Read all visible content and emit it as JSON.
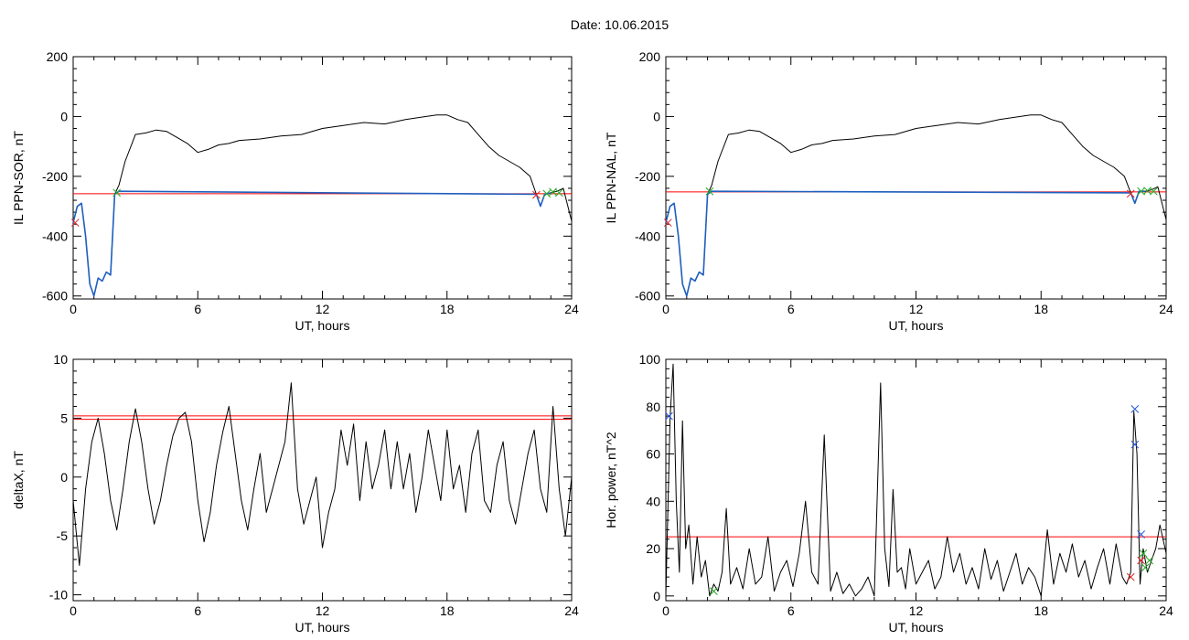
{
  "title": "Date:  10.06.2015",
  "colors": {
    "data": "#000000",
    "threshold": "#ff0000",
    "fit": "#1f5fbf",
    "marker_red": "#dd2222",
    "marker_green": "#22aa22",
    "marker_blue": "#2255dd"
  },
  "chart_data": [
    {
      "id": "il-ppn-sor",
      "type": "line",
      "title": "",
      "xlabel": "UT, hours",
      "ylabel": "IL PPN-SOR, nT",
      "xlim": [
        0,
        24
      ],
      "ylim": [
        -610,
        200
      ],
      "xticks": [
        0,
        6,
        12,
        18,
        24
      ],
      "yticks": [
        -600,
        -400,
        -200,
        0,
        200
      ],
      "thresholds": [
        -258
      ],
      "series": [
        {
          "role": "data",
          "x": [
            0,
            0.2,
            0.4,
            0.6,
            0.8,
            1.0,
            1.2,
            1.4,
            1.6,
            1.8,
            2.0,
            2.2,
            2.5,
            3.0,
            3.5,
            4.0,
            4.5,
            5.0,
            5.5,
            6.0,
            6.5,
            7.0,
            7.5,
            8.0,
            9.0,
            10.0,
            11.0,
            12.0,
            13.0,
            14.0,
            15.0,
            16.0,
            17.0,
            17.5,
            18.0,
            18.5,
            19.0,
            19.5,
            20.0,
            20.5,
            21.0,
            21.5,
            22.0,
            22.3,
            22.5,
            22.7,
            23.0,
            23.3,
            23.6,
            24.0
          ],
          "y": [
            -355,
            -300,
            -290,
            -400,
            -560,
            -600,
            -540,
            -550,
            -520,
            -530,
            -260,
            -230,
            -150,
            -60,
            -55,
            -45,
            -50,
            -70,
            -90,
            -120,
            -110,
            -95,
            -90,
            -80,
            -75,
            -65,
            -60,
            -40,
            -30,
            -20,
            -25,
            -10,
            0,
            5,
            5,
            -10,
            -20,
            -60,
            -100,
            -130,
            -150,
            -170,
            -200,
            -260,
            -300,
            -260,
            -255,
            -250,
            -240,
            -350
          ]
        },
        {
          "role": "fit",
          "x": [
            0,
            0.2,
            0.4,
            0.6,
            0.8,
            1.0,
            1.2,
            1.4,
            1.6,
            1.8,
            2.0,
            2.2,
            22.3,
            22.5,
            22.7,
            23.0
          ],
          "y": [
            -355,
            -300,
            -290,
            -400,
            -560,
            -600,
            -540,
            -550,
            -520,
            -530,
            -260,
            -250,
            -260,
            -300,
            -260,
            -255
          ]
        }
      ],
      "markers": [
        {
          "x": 0.1,
          "y": -355,
          "color": "red"
        },
        {
          "x": 2.1,
          "y": -255,
          "color": "green"
        },
        {
          "x": 22.3,
          "y": -262,
          "color": "red"
        },
        {
          "x": 22.8,
          "y": -258,
          "color": "green"
        },
        {
          "x": 23.1,
          "y": -252,
          "color": "green"
        },
        {
          "x": 23.4,
          "y": -255,
          "color": "green"
        }
      ]
    },
    {
      "id": "il-ppn-nal",
      "type": "line",
      "title": "",
      "xlabel": "UT, hours",
      "ylabel": "IL PPN-NAL, nT",
      "xlim": [
        0,
        24
      ],
      "ylim": [
        -610,
        200
      ],
      "xticks": [
        0,
        6,
        12,
        18,
        24
      ],
      "yticks": [
        -600,
        -400,
        -200,
        0,
        200
      ],
      "thresholds": [
        -252
      ],
      "series": [
        {
          "role": "data",
          "x": [
            0,
            0.2,
            0.4,
            0.6,
            0.8,
            1.0,
            1.2,
            1.4,
            1.6,
            1.8,
            2.0,
            2.2,
            2.5,
            3.0,
            3.5,
            4.0,
            4.5,
            5.0,
            5.5,
            6.0,
            6.5,
            7.0,
            7.5,
            8.0,
            9.0,
            10.0,
            11.0,
            12.0,
            13.0,
            14.0,
            15.0,
            16.0,
            17.0,
            17.5,
            18.0,
            18.5,
            19.0,
            19.5,
            20.0,
            20.5,
            21.0,
            21.5,
            22.0,
            22.3,
            22.5,
            22.7,
            23.0,
            23.3,
            23.6,
            24.0
          ],
          "y": [
            -355,
            -300,
            -290,
            -400,
            -560,
            -600,
            -540,
            -550,
            -520,
            -530,
            -260,
            -230,
            -150,
            -60,
            -55,
            -45,
            -50,
            -70,
            -90,
            -120,
            -110,
            -95,
            -90,
            -80,
            -75,
            -65,
            -60,
            -40,
            -30,
            -20,
            -25,
            -10,
            0,
            5,
            5,
            -10,
            -20,
            -60,
            -100,
            -130,
            -150,
            -170,
            -200,
            -255,
            -290,
            -250,
            -250,
            -245,
            -235,
            -345
          ]
        },
        {
          "role": "fit",
          "x": [
            0,
            0.2,
            0.4,
            0.6,
            0.8,
            1.0,
            1.2,
            1.4,
            1.6,
            1.8,
            2.0,
            2.2,
            22.3,
            22.5,
            22.7,
            23.0
          ],
          "y": [
            -355,
            -300,
            -290,
            -400,
            -560,
            -600,
            -540,
            -550,
            -520,
            -530,
            -260,
            -250,
            -255,
            -290,
            -250,
            -250
          ]
        }
      ],
      "markers": [
        {
          "x": 0.1,
          "y": -355,
          "color": "red"
        },
        {
          "x": 2.1,
          "y": -250,
          "color": "green"
        },
        {
          "x": 22.3,
          "y": -258,
          "color": "red"
        },
        {
          "x": 22.8,
          "y": -250,
          "color": "green"
        },
        {
          "x": 23.1,
          "y": -248,
          "color": "green"
        },
        {
          "x": 23.4,
          "y": -250,
          "color": "green"
        }
      ]
    },
    {
      "id": "deltax",
      "type": "line",
      "title": "",
      "xlabel": "UT, hours",
      "ylabel": "deltaX, nT",
      "xlim": [
        0,
        24
      ],
      "ylim": [
        -10.5,
        10
      ],
      "xticks": [
        0,
        6,
        12,
        18,
        24
      ],
      "yticks": [
        -10,
        -5,
        0,
        5,
        10
      ],
      "thresholds": [
        5.2,
        4.9
      ],
      "series": [
        {
          "role": "data",
          "x": [
            0,
            0.3,
            0.6,
            0.9,
            1.2,
            1.5,
            1.8,
            2.1,
            2.4,
            2.7,
            3.0,
            3.3,
            3.6,
            3.9,
            4.2,
            4.5,
            4.8,
            5.1,
            5.4,
            5.7,
            6.0,
            6.3,
            6.6,
            6.9,
            7.2,
            7.5,
            7.8,
            8.1,
            8.4,
            8.7,
            9.0,
            9.3,
            9.6,
            9.9,
            10.2,
            10.5,
            10.8,
            11.1,
            11.4,
            11.7,
            12.0,
            12.3,
            12.6,
            12.9,
            13.2,
            13.5,
            13.8,
            14.1,
            14.4,
            14.7,
            15.0,
            15.3,
            15.6,
            15.9,
            16.2,
            16.5,
            16.8,
            17.1,
            17.4,
            17.7,
            18.0,
            18.3,
            18.6,
            18.9,
            19.2,
            19.5,
            19.8,
            20.1,
            20.4,
            20.7,
            21.0,
            21.3,
            21.6,
            21.9,
            22.2,
            22.5,
            22.8,
            23.1,
            23.4,
            23.7,
            24.0
          ],
          "y": [
            -2,
            -7.5,
            -1,
            3,
            5,
            2,
            -2,
            -4.5,
            -1,
            3,
            5.8,
            3,
            -1,
            -4,
            -2,
            1,
            3.5,
            5,
            5.5,
            3,
            -2,
            -5.5,
            -3,
            1,
            3.8,
            6,
            2,
            -2,
            -4.5,
            -1,
            2,
            -3,
            -1,
            1,
            3,
            8,
            -1,
            -4,
            -2,
            0,
            -6,
            -3,
            -1,
            4,
            1,
            4.5,
            -2,
            3,
            -1,
            1,
            4,
            -1,
            3,
            -1,
            2,
            -3,
            0,
            4,
            1,
            -2,
            4,
            -1,
            1,
            -3,
            2,
            4,
            -2,
            -3,
            1,
            3,
            -2,
            -4,
            -1,
            2,
            4,
            -1,
            -3,
            6,
            -1,
            -5,
            0
          ]
        }
      ],
      "markers": []
    },
    {
      "id": "hor-power",
      "type": "line",
      "title": "",
      "xlabel": "UT, hours",
      "ylabel": "Hor. power, nT^2",
      "xlim": [
        0,
        24
      ],
      "ylim": [
        -2,
        100
      ],
      "xticks": [
        0,
        6,
        12,
        18,
        24
      ],
      "yticks": [
        0,
        20,
        40,
        60,
        80,
        100
      ],
      "thresholds": [
        25
      ],
      "series": [
        {
          "role": "data",
          "x": [
            0,
            0.2,
            0.35,
            0.5,
            0.65,
            0.8,
            0.95,
            1.1,
            1.3,
            1.5,
            1.7,
            1.9,
            2.1,
            2.3,
            2.5,
            2.7,
            2.9,
            3.1,
            3.4,
            3.7,
            4.0,
            4.3,
            4.6,
            4.9,
            5.2,
            5.5,
            5.8,
            6.1,
            6.4,
            6.7,
            7.0,
            7.3,
            7.6,
            7.9,
            8.2,
            8.5,
            8.8,
            9.1,
            9.4,
            9.7,
            10.0,
            10.3,
            10.5,
            10.7,
            10.9,
            11.1,
            11.3,
            11.5,
            11.7,
            12.0,
            12.3,
            12.6,
            12.9,
            13.2,
            13.5,
            13.8,
            14.1,
            14.4,
            14.7,
            15.0,
            15.3,
            15.6,
            15.9,
            16.2,
            16.5,
            16.8,
            17.1,
            17.4,
            17.7,
            18.0,
            18.3,
            18.6,
            18.9,
            19.2,
            19.5,
            19.8,
            20.1,
            20.4,
            20.7,
            21.0,
            21.3,
            21.6,
            21.9,
            22.1,
            22.3,
            22.45,
            22.6,
            22.75,
            22.9,
            23.1,
            23.3,
            23.5,
            23.7,
            24.0
          ],
          "y": [
            0,
            75,
            98,
            40,
            10,
            74,
            20,
            30,
            5,
            25,
            8,
            15,
            0,
            5,
            2,
            10,
            37,
            5,
            12,
            3,
            20,
            5,
            8,
            25,
            2,
            10,
            15,
            4,
            18,
            40,
            10,
            5,
            68,
            2,
            10,
            1,
            5,
            0,
            3,
            8,
            0,
            90,
            20,
            4,
            45,
            10,
            12,
            3,
            20,
            5,
            10,
            15,
            3,
            8,
            25,
            10,
            18,
            5,
            12,
            3,
            20,
            7,
            15,
            2,
            10,
            18,
            5,
            12,
            8,
            0,
            28,
            5,
            18,
            10,
            22,
            8,
            15,
            3,
            12,
            20,
            5,
            22,
            8,
            5,
            10,
            78,
            60,
            5,
            20,
            10,
            15,
            20,
            30,
            18
          ]
        }
      ],
      "markers": [
        {
          "x": 0.15,
          "y": 76,
          "color": "blue"
        },
        {
          "x": 2.3,
          "y": 2,
          "color": "green"
        },
        {
          "x": 22.3,
          "y": 8,
          "color": "red"
        },
        {
          "x": 22.5,
          "y": 79,
          "color": "blue"
        },
        {
          "x": 22.5,
          "y": 64,
          "color": "blue"
        },
        {
          "x": 22.8,
          "y": 26,
          "color": "blue"
        },
        {
          "x": 22.8,
          "y": 15,
          "color": "red"
        },
        {
          "x": 23.0,
          "y": 12,
          "color": "green"
        },
        {
          "x": 23.2,
          "y": 15,
          "color": "green"
        },
        {
          "x": 22.9,
          "y": 18,
          "color": "green"
        }
      ]
    }
  ]
}
